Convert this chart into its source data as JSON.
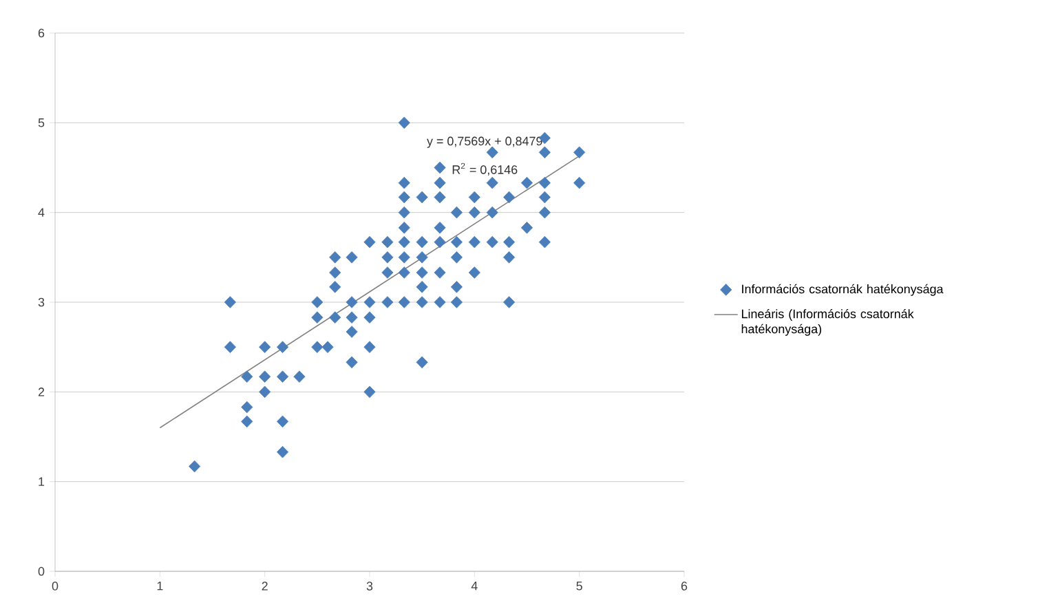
{
  "chart_data": {
    "type": "scatter",
    "xlim": [
      0,
      6
    ],
    "ylim": [
      0,
      6
    ],
    "xticks": [
      0,
      1,
      2,
      3,
      4,
      5,
      6
    ],
    "yticks": [
      0,
      1,
      2,
      3,
      4,
      5,
      6
    ],
    "grid": "y",
    "legend": "right",
    "annotations": [
      "y = 0,7569x + 0,8479",
      "R$^{2}$ = 0,6146"
    ],
    "series": [
      {
        "name": "Információs csatornák hatékonysága",
        "marker": "diamond",
        "color": "#4a7ebb",
        "x": [
          1.33,
          1.67,
          1.67,
          1.83,
          1.83,
          1.83,
          2.0,
          2.0,
          2.0,
          2.17,
          2.17,
          2.17,
          2.17,
          2.33,
          2.5,
          2.5,
          2.5,
          2.67,
          2.67,
          2.67,
          2.67,
          2.6,
          2.83,
          2.83,
          2.83,
          2.83,
          2.83,
          3.0,
          3.0,
          3.0,
          3.0,
          3.0,
          3.17,
          3.17,
          3.17,
          3.17,
          3.33,
          3.33,
          3.33,
          3.33,
          3.33,
          3.33,
          3.33,
          3.33,
          3.33,
          3.5,
          3.5,
          3.5,
          3.5,
          3.5,
          3.5,
          3.5,
          3.67,
          3.67,
          3.67,
          3.67,
          3.67,
          3.67,
          3.67,
          3.83,
          3.83,
          3.83,
          3.83,
          3.83,
          4.0,
          4.0,
          4.0,
          4.0,
          4.17,
          4.17,
          4.17,
          4.17,
          4.33,
          4.33,
          4.33,
          4.33,
          4.5,
          4.5,
          4.67,
          4.67,
          4.67,
          4.67,
          4.67,
          4.67,
          5.0,
          5.0
        ],
        "values": [
          1.17,
          3.0,
          2.5,
          2.17,
          1.83,
          1.67,
          2.5,
          2.17,
          2.0,
          2.5,
          2.17,
          1.67,
          1.33,
          2.17,
          3.0,
          2.83,
          2.5,
          3.5,
          3.33,
          3.17,
          2.83,
          2.5,
          3.5,
          3.0,
          2.83,
          2.67,
          2.33,
          3.67,
          3.0,
          2.83,
          2.5,
          2.0,
          3.67,
          3.5,
          3.33,
          3.0,
          5.0,
          4.33,
          4.17,
          4.0,
          3.83,
          3.67,
          3.5,
          3.33,
          3.0,
          4.17,
          3.67,
          3.5,
          3.33,
          3.17,
          3.0,
          2.33,
          4.5,
          4.33,
          4.17,
          3.83,
          3.67,
          3.33,
          3.0,
          4.0,
          3.67,
          3.5,
          3.17,
          3.0,
          4.17,
          4.0,
          3.67,
          3.33,
          4.67,
          4.33,
          4.0,
          3.67,
          4.17,
          3.67,
          3.5,
          3.0,
          4.33,
          3.83,
          4.83,
          4.67,
          4.33,
          4.17,
          4.0,
          3.67,
          4.67,
          4.33
        ]
      },
      {
        "name": "Lineáris (Információs csatornák hatékonysága)",
        "type": "line",
        "color": "#808080",
        "line_style": "solid",
        "marker": "none",
        "x": [
          1,
          5
        ],
        "values": [
          1.6,
          4.63
        ]
      }
    ]
  }
}
